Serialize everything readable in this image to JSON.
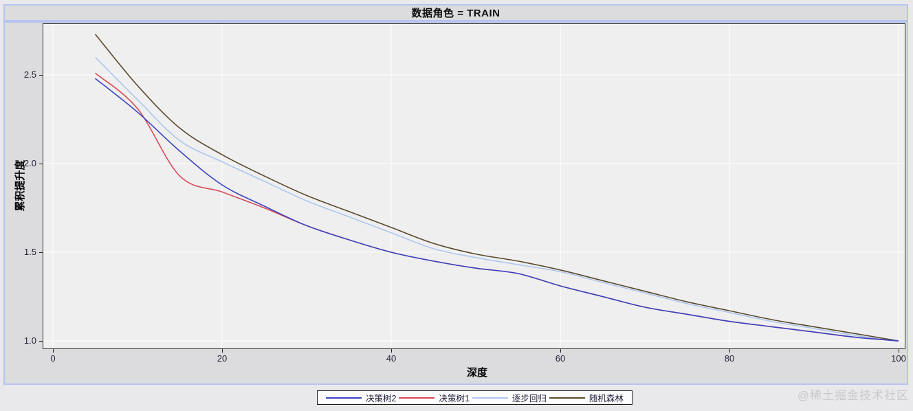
{
  "page": {
    "watermark": "@稀土掘金技术社区"
  },
  "chart_data": {
    "type": "line",
    "title": "数据角色 = TRAIN",
    "xlabel": "深度",
    "ylabel": "累积提升度",
    "x_ticks": [
      0,
      20,
      40,
      60,
      80,
      100
    ],
    "y_tick_labels": [
      "1.0",
      "1.5",
      "2.0",
      "2.5"
    ],
    "xlim": [
      0,
      100
    ],
    "ylim": [
      0.93,
      2.78
    ],
    "grid": true,
    "grid_color": "#ffffff",
    "plot_background": "#efefef",
    "legend_position": "bottom",
    "x": [
      5,
      10,
      15,
      20,
      25,
      30,
      35,
      40,
      45,
      50,
      55,
      60,
      65,
      70,
      75,
      80,
      85,
      90,
      95,
      100
    ],
    "series": [
      {
        "name": "决策树2",
        "color": "#3a43c2",
        "values": [
          2.48,
          2.29,
          2.07,
          1.88,
          1.76,
          1.65,
          1.57,
          1.5,
          1.45,
          1.41,
          1.38,
          1.31,
          1.25,
          1.19,
          1.15,
          1.11,
          1.08,
          1.05,
          1.02,
          1.0
        ]
      },
      {
        "name": "决策树1",
        "color": "#d84a56",
        "values": [
          2.51,
          2.31,
          1.93,
          1.84,
          1.75,
          1.65,
          1.57,
          1.5,
          1.45,
          1.41,
          1.38,
          1.31,
          1.25,
          1.19,
          1.15,
          1.11,
          1.08,
          1.05,
          1.02,
          1.0
        ]
      },
      {
        "name": "逐步回归",
        "color": "#aec6f0",
        "values": [
          2.6,
          2.36,
          2.13,
          2.01,
          1.9,
          1.79,
          1.7,
          1.61,
          1.52,
          1.47,
          1.43,
          1.39,
          1.33,
          1.27,
          1.21,
          1.16,
          1.11,
          1.07,
          1.03,
          1.0
        ]
      },
      {
        "name": "随机森林",
        "color": "#594a2b",
        "values": [
          2.73,
          2.44,
          2.2,
          2.05,
          1.93,
          1.82,
          1.73,
          1.64,
          1.55,
          1.49,
          1.45,
          1.4,
          1.34,
          1.28,
          1.22,
          1.17,
          1.12,
          1.08,
          1.04,
          1.0
        ]
      }
    ]
  }
}
